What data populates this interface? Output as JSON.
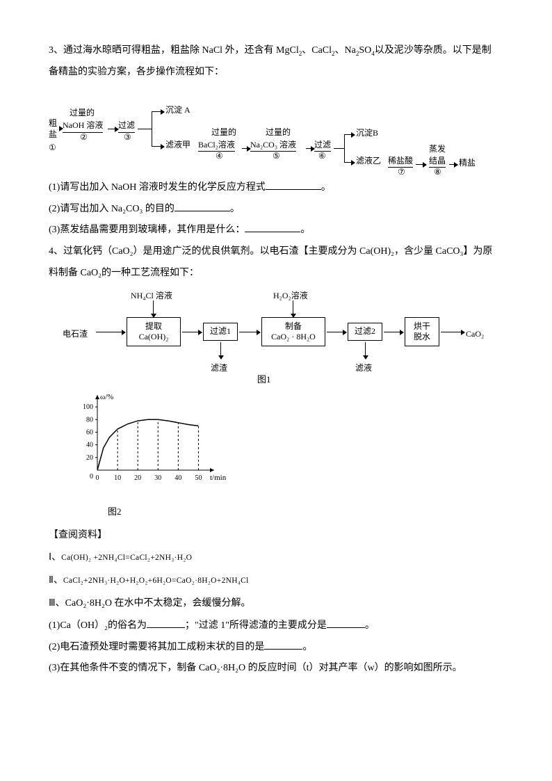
{
  "q3": {
    "intro_a": "3、通过海水晾晒可得粗盐，粗盐除 NaCl 外，还含有 MgCl",
    "intro_b": "、CaCl",
    "intro_c": "、Na",
    "intro_d": "SO",
    "intro_e": "以及泥沙等杂质。以下是制",
    "intro2": "备精盐的实验方案，各步操作流程如下：",
    "flow": {
      "cu_yan": "粗\n盐",
      "num1": "①",
      "guoliang": "过量的",
      "naoh": "NaOH 溶液",
      "num2": "②",
      "guolv": "过滤",
      "num3": "③",
      "chendian_a": "沉淀 A",
      "luye_jia": "滤液甲",
      "bacl2": "BaCl₂溶液",
      "num4": "④",
      "na2co3": "Na₂CO₃ 溶液",
      "num5": "⑤",
      "num6": "⑥",
      "chendian_b": "沉淀B",
      "luye_yi": "滤液乙",
      "xiyan": "稀盐酸",
      "num7": "⑦",
      "zhengfa": "蒸发",
      "jiejing": "结晶",
      "num8": "⑧",
      "jingyan": "精盐"
    },
    "q1": "(1)请写出加入 NaOH 溶液时发生的化学反应方程式",
    "q1_end": "。",
    "q2": "(2)请写出加入 Na₂CO₃ 的目的",
    "q2_end": "。",
    "q3": "(3)蒸发结晶需要用到玻璃棒，其作用是什么：",
    "q3_end": "。"
  },
  "q4": {
    "intro_a": "4、过氧化钙（CaO₂）是用途广泛的优良供氧剂。以电石渣【主要成分为 Ca(OH)₂，含少量 CaCO₃】为原",
    "intro_b": "料制备 CaO₂的一种工艺流程如下：",
    "flow": {
      "nh4cl": "NH₄Cl 溶液",
      "dianshi": "电石渣",
      "tiqu": "提取",
      "caoh2": "Ca(OH)₂",
      "guolv1": "过滤1",
      "luzha": "滤渣",
      "h2o2": "H₂O₂溶液",
      "zhibei": "制备",
      "cao28h2o": "CaO₂ · 8H₂O",
      "guolv2": "过滤2",
      "luye": "滤液",
      "honggan": "烘干",
      "tuoshui": "脱水",
      "cao2": "CaO₂"
    },
    "caption1": "图1",
    "caption2": "图2",
    "chayue": "【查阅资料】",
    "eq1_label": "Ⅰ、",
    "eq1": "Ca(OH)₂ +2NH₄Cl=CaCl₂+2NH₃·H₂O",
    "eq2_label": "Ⅱ、",
    "eq2": "CaCl₂+2NH₃·H₂O+H₂O₂+6H₂O=CaO₂·8H₂O+2NH₄Cl",
    "eq3": "Ⅲ、CaO₂·8H₂O 在水中不太稳定，会缓慢分解。",
    "sub1_a": "(1)Ca（OH）₂的俗名为",
    "sub1_b": "；\"过滤 1\"所得滤渣的主要成分是",
    "sub1_end": "。",
    "sub2": "(2)电石渣预处理时需要将其加工成粉末状的目的是",
    "sub2_end": "。",
    "sub3": "(3)在其他条件不变的情况下，制备 CaO₂·8H₂O 的反应时间（t）对其产率（w）的影响如图所示。"
  },
  "chart": {
    "ylabel": "ω/%",
    "xlabel": "t/min",
    "y_ticks": [
      0,
      20,
      40,
      60,
      80,
      100
    ],
    "x_ticks": [
      0,
      10,
      20,
      30,
      40,
      50
    ],
    "xlim": [
      0,
      55
    ],
    "ylim": [
      0,
      110
    ],
    "curve_x": [
      0,
      3,
      6,
      10,
      15,
      20,
      25,
      30,
      35,
      40,
      45,
      50
    ],
    "curve_y": [
      0,
      35,
      52,
      65,
      73,
      78,
      80,
      80,
      78,
      75,
      72,
      70
    ],
    "axis_color": "#000000",
    "curve_color": "#000000",
    "dash_color": "#000000"
  }
}
